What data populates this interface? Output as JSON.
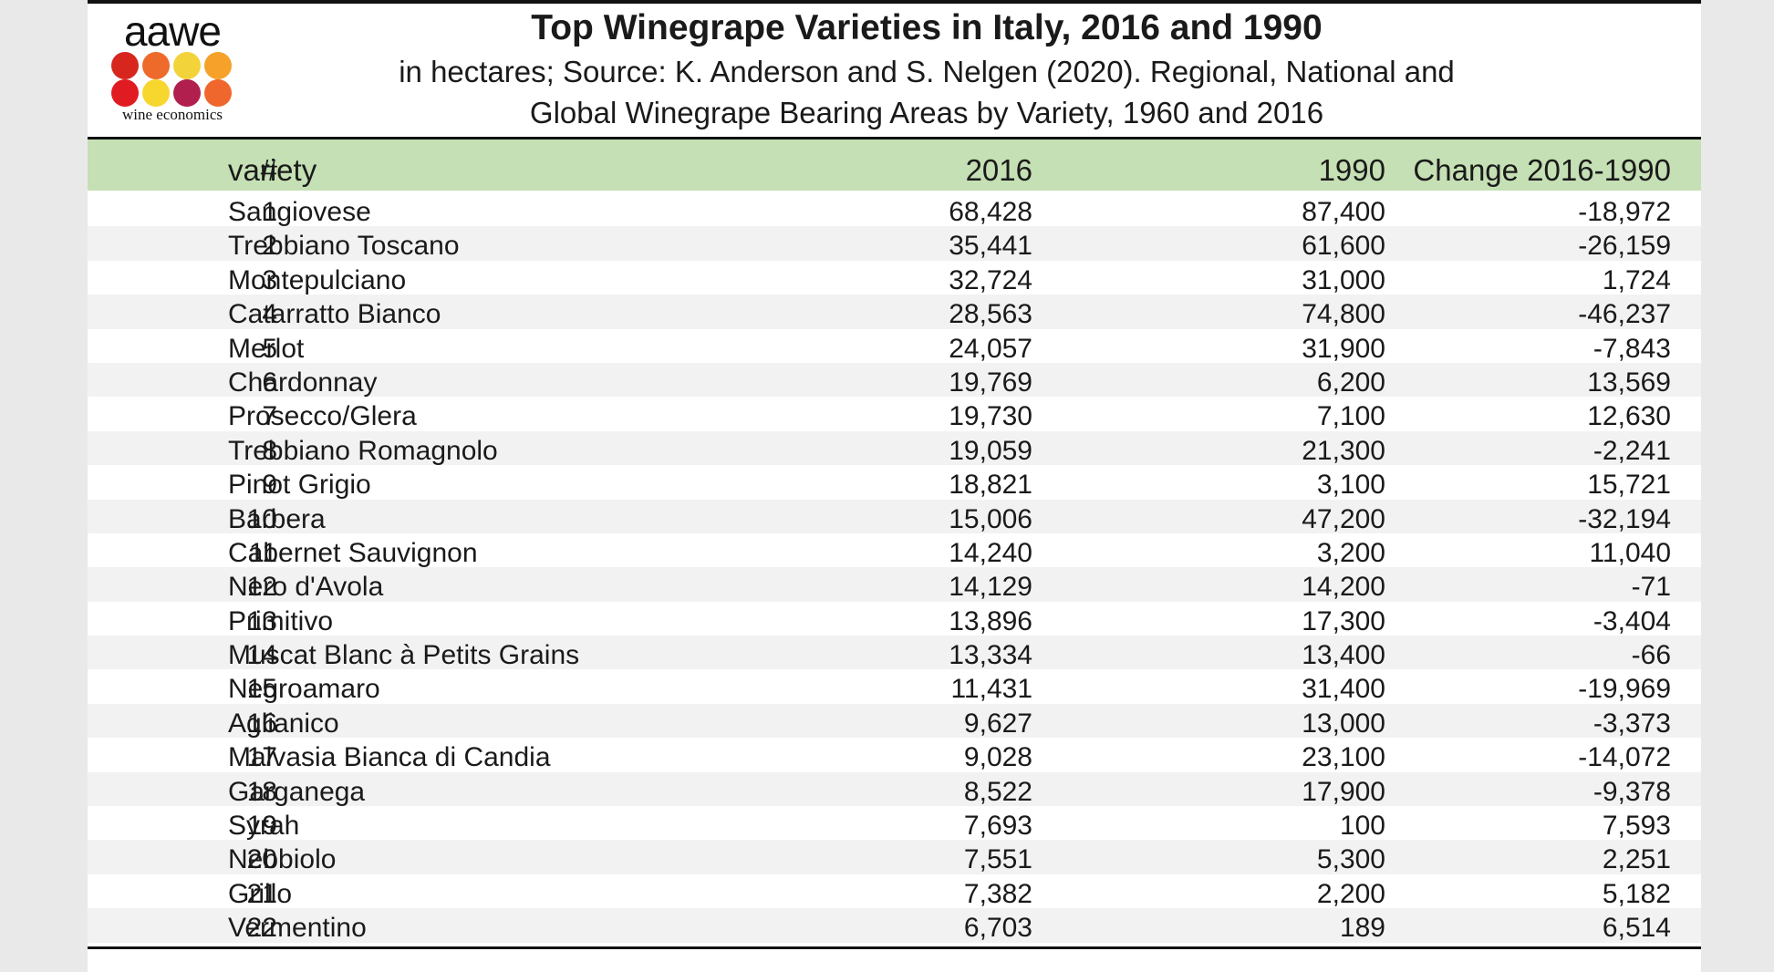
{
  "logo": {
    "word": "aawe",
    "tagline": "wine economics",
    "dot_colors": [
      "#d7261e",
      "#ee6a2b",
      "#f2d43a",
      "#f5a12a",
      "#e11b22",
      "#f7d62e",
      "#b01f4e",
      "#f0672d"
    ]
  },
  "title": "Top Winegrape Varieties in Italy, 2016 and 1990",
  "subtitle_line1": "in hectares; Source: K. Anderson and S. Nelgen (2020). Regional, National and",
  "subtitle_line2": "Global Winegrape Bearing Areas by Variety, 1960 and 2016",
  "colors": {
    "header_fill": "#c5e0b4",
    "stripe_fill": "#f2f2f2"
  },
  "chart_data": {
    "type": "table",
    "columns": [
      "#",
      "variety",
      "2016",
      "1990",
      "Change 2016-1990"
    ],
    "rows": [
      [
        "1",
        "Sangiovese",
        "68,428",
        "87,400",
        "-18,972"
      ],
      [
        "2",
        "Trebbiano Toscano",
        "35,441",
        "61,600",
        "-26,159"
      ],
      [
        "3",
        "Montepulciano",
        "32,724",
        "31,000",
        "1,724"
      ],
      [
        "4",
        "Catarratto Bianco",
        "28,563",
        "74,800",
        "-46,237"
      ],
      [
        "5",
        "Merlot",
        "24,057",
        "31,900",
        "-7,843"
      ],
      [
        "6",
        "Chardonnay",
        "19,769",
        "6,200",
        "13,569"
      ],
      [
        "7",
        "Prosecco/Glera",
        "19,730",
        "7,100",
        "12,630"
      ],
      [
        "8",
        "Trebbiano Romagnolo",
        "19,059",
        "21,300",
        "-2,241"
      ],
      [
        "9",
        "Pinot Grigio",
        "18,821",
        "3,100",
        "15,721"
      ],
      [
        "10",
        "Barbera",
        "15,006",
        "47,200",
        "-32,194"
      ],
      [
        "11",
        "Cabernet Sauvignon",
        "14,240",
        "3,200",
        "11,040"
      ],
      [
        "12",
        "Nero d'Avola",
        "14,129",
        "14,200",
        "-71"
      ],
      [
        "13",
        "Primitivo",
        "13,896",
        "17,300",
        "-3,404"
      ],
      [
        "14",
        "Muscat Blanc à Petits Grains",
        "13,334",
        "13,400",
        "-66"
      ],
      [
        "15",
        "Negroamaro",
        "11,431",
        "31,400",
        "-19,969"
      ],
      [
        "16",
        "Aglianico",
        "9,627",
        "13,000",
        "-3,373"
      ],
      [
        "17",
        "Malvasia Bianca di Candia",
        "9,028",
        "23,100",
        "-14,072"
      ],
      [
        "18",
        "Garganega",
        "8,522",
        "17,900",
        "-9,378"
      ],
      [
        "19",
        "Syrah",
        "7,693",
        "100",
        "7,593"
      ],
      [
        "20",
        "Nebbiolo",
        "7,551",
        "5,300",
        "2,251"
      ],
      [
        "21",
        "Grillo",
        "7,382",
        "2,200",
        "5,182"
      ],
      [
        "22",
        "Vermentino",
        "6,703",
        "189",
        "6,514"
      ]
    ]
  }
}
